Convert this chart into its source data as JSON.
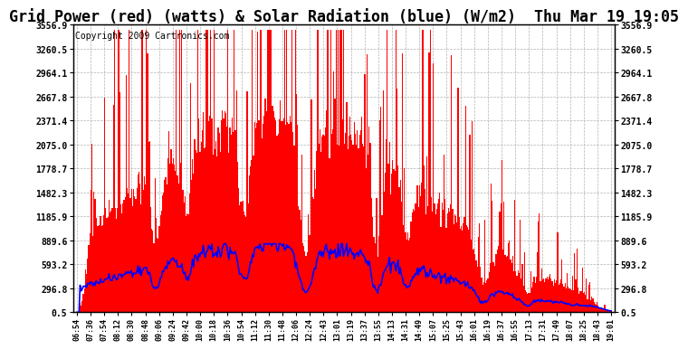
{
  "title": "Grid Power (red) (watts) & Solar Radiation (blue) (W/m2)  Thu Mar 19 19:05",
  "copyright": "Copyright 2009 Cartronics.com",
  "y_ticks": [
    0.5,
    296.8,
    593.2,
    889.6,
    1185.9,
    1482.3,
    1778.7,
    2075.0,
    2371.4,
    2667.8,
    2964.1,
    3260.5,
    3556.9
  ],
  "y_tick_labels": [
    "0.5",
    "296.8",
    "593.2",
    "889.6",
    "1185.9",
    "1482.3",
    "1778.7",
    "2075.0",
    "2371.4",
    "2667.8",
    "2964.1",
    "3260.5",
    "3556.9"
  ],
  "x_labels": [
    "06:54",
    "07:36",
    "07:54",
    "08:12",
    "08:30",
    "08:48",
    "09:06",
    "09:24",
    "09:42",
    "10:00",
    "10:18",
    "10:36",
    "10:54",
    "11:12",
    "11:30",
    "11:48",
    "12:06",
    "12:24",
    "12:43",
    "13:01",
    "13:19",
    "13:37",
    "13:55",
    "14:13",
    "14:31",
    "14:49",
    "15:07",
    "15:25",
    "15:43",
    "16:01",
    "16:19",
    "16:37",
    "16:55",
    "17:13",
    "17:31",
    "17:49",
    "18:07",
    "18:25",
    "18:43",
    "19:01"
  ],
  "ylim_min": 0.5,
  "ylim_max": 3556.9,
  "bg_color": "#ffffff",
  "plot_bg_color": "#ffffff",
  "grid_color": "#aaaaaa",
  "bar_color": "#ff0000",
  "line_color": "#0000ff",
  "title_fontsize": 12,
  "copyright_fontsize": 7
}
